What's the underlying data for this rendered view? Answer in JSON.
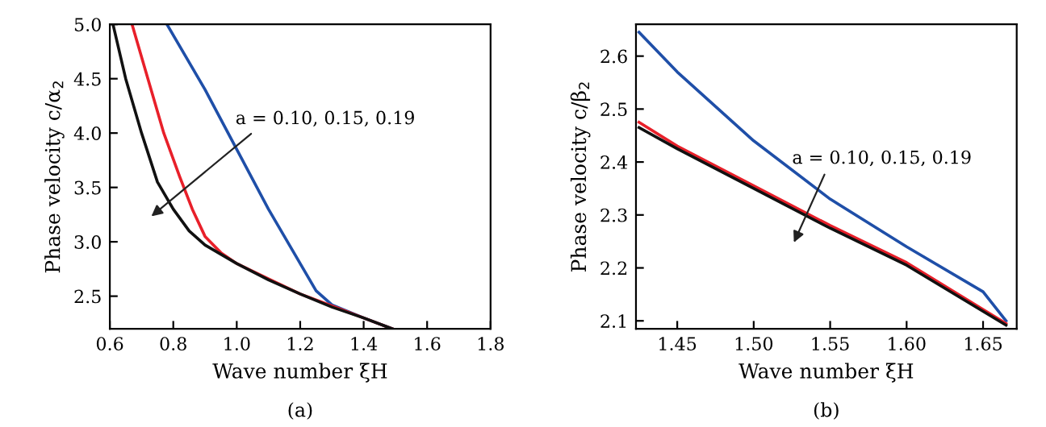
{
  "chart_data": [
    {
      "type": "line",
      "xlabel": "Wave number ξH",
      "ylabel": "Phase velocity c/α$_{2}$",
      "xlim": [
        0.6,
        1.8
      ],
      "ylim": [
        2.2,
        5.0
      ],
      "xticks": [
        0.6,
        0.8,
        {
          "value": 1,
          "label": "1.0"
        },
        1.2,
        1.4,
        1.6,
        1.8
      ],
      "yticks": [
        2.5,
        {
          "value": 3,
          "label": "3.0"
        },
        3.5,
        {
          "value": 4,
          "label": "4.0"
        },
        4.5,
        {
          "value": 5,
          "label": "5.0"
        }
      ],
      "grid": false,
      "legend": false,
      "annotations": [
        "a = 0.10, 0.15, 0.19",
        "(a)"
      ],
      "series": [
        {
          "color": "#1f4fa8",
          "x": [
            0.78,
            0.9,
            1.0,
            1.1,
            1.2,
            1.25,
            1.3,
            1.4,
            1.49
          ],
          "values": [
            5.0,
            4.4,
            3.85,
            3.3,
            2.8,
            2.55,
            2.42,
            2.3,
            2.2
          ]
        },
        {
          "color": "#e8202a",
          "x": [
            0.67,
            0.72,
            0.77,
            0.82,
            0.86,
            0.9,
            0.95,
            1.0,
            1.1,
            1.2,
            1.3,
            1.4,
            1.49
          ],
          "values": [
            5.0,
            4.5,
            4.0,
            3.6,
            3.3,
            3.05,
            2.9,
            2.8,
            2.66,
            2.52,
            2.41,
            2.3,
            2.2
          ]
        },
        {
          "color": "#111111",
          "x": [
            0.61,
            0.65,
            0.7,
            0.75,
            0.8,
            0.85,
            0.9,
            1.0,
            1.1,
            1.2,
            1.3,
            1.4,
            1.49
          ],
          "values": [
            5.0,
            4.5,
            4.0,
            3.55,
            3.3,
            3.1,
            2.97,
            2.8,
            2.65,
            2.52,
            2.4,
            2.3,
            2.2
          ]
        }
      ]
    },
    {
      "type": "line",
      "xlabel": "Wave number ξH",
      "ylabel": "Phase velocity c/β$_{2}$",
      "xlim": [
        1.423,
        1.672
      ],
      "ylim": [
        2.085,
        2.66
      ],
      "xticks": [
        1.45,
        {
          "value": 1.5,
          "label": "1.50"
        },
        1.55,
        {
          "value": 1.6,
          "label": "1.60"
        },
        1.65
      ],
      "yticks": [
        2.1,
        2.2,
        2.3,
        2.4,
        2.5,
        2.6
      ],
      "grid": false,
      "legend": false,
      "annotations": [
        "a = 0.10, 0.15, 0.19",
        "(b)"
      ],
      "series": [
        {
          "color": "#1f4fa8",
          "x": [
            1.425,
            1.45,
            1.5,
            1.55,
            1.6,
            1.65,
            1.665
          ],
          "values": [
            2.645,
            2.57,
            2.44,
            2.33,
            2.24,
            2.155,
            2.1
          ]
        },
        {
          "color": "#e8202a",
          "x": [
            1.425,
            1.45,
            1.5,
            1.55,
            1.6,
            1.665
          ],
          "values": [
            2.475,
            2.43,
            2.355,
            2.28,
            2.21,
            2.095
          ]
        },
        {
          "color": "#111111",
          "x": [
            1.425,
            1.45,
            1.5,
            1.55,
            1.6,
            1.665
          ],
          "values": [
            2.465,
            2.425,
            2.35,
            2.275,
            2.205,
            2.092
          ]
        }
      ]
    }
  ]
}
